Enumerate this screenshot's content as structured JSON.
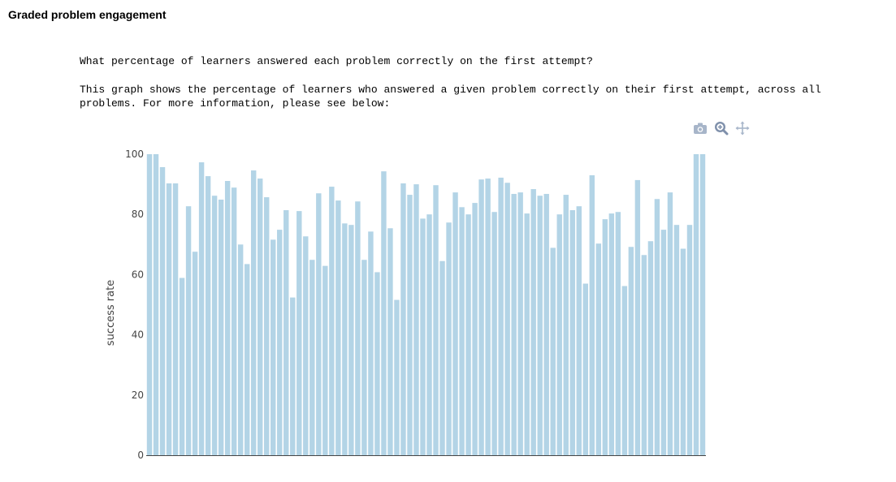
{
  "section": {
    "title": "Graded problem engagement"
  },
  "question": "What percentage of learners answered each problem correctly on the first attempt?",
  "description": "This graph shows the percentage of learners who answered a given problem correctly on their first attempt, across all problems. For more information, please see below:",
  "modebar": {
    "icons": [
      "camera-icon",
      "zoom-icon",
      "pan-icon"
    ]
  },
  "colors": {
    "bar": "#b3d4e6",
    "axis": "#444444",
    "icon": "#a7b5c9"
  },
  "chart_data": {
    "type": "bar",
    "title": "",
    "xlabel": "",
    "ylabel": "success rate",
    "ylim": [
      0,
      100
    ],
    "yticks": [
      0,
      20,
      40,
      60,
      80,
      100
    ],
    "grid": false,
    "series": [
      {
        "values": [
          100,
          100,
          95.7,
          90.3,
          90.3,
          58.9,
          82.7,
          67.6,
          97.3,
          92.7,
          86.2,
          84.9,
          91.1,
          88.9,
          70.0,
          63.5,
          94.6,
          91.9,
          85.7,
          71.6,
          74.9,
          81.4,
          52.4,
          81.1,
          72.7,
          64.9,
          87.0,
          62.9,
          89.2,
          84.6,
          77.0,
          76.5,
          84.3,
          64.9,
          74.3,
          60.8,
          94.3,
          75.4,
          51.6,
          90.3,
          86.5,
          90.0,
          78.6,
          80.0,
          89.7,
          64.5,
          77.3,
          87.3,
          82.4,
          80.0,
          83.8,
          91.6,
          91.9,
          80.8,
          92.2,
          90.5,
          86.8,
          87.3,
          80.3,
          88.4,
          86.2,
          86.8,
          68.9,
          80.0,
          86.5,
          81.4,
          82.7,
          57.0,
          93.0,
          70.3,
          78.4,
          80.3,
          80.8,
          56.2,
          69.2,
          91.4,
          66.5,
          71.1,
          85.1,
          74.9,
          87.3,
          76.5,
          68.6,
          76.5,
          100,
          100
        ]
      }
    ]
  }
}
